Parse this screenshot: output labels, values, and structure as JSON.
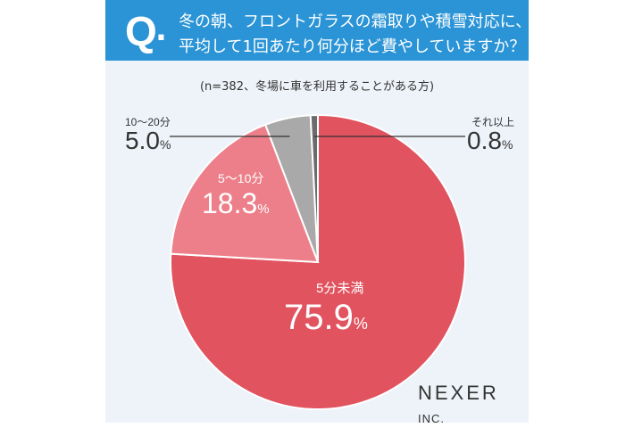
{
  "header": {
    "q": "Q",
    "dot": ".",
    "line1": "冬の朝、フロントガラスの霜取りや積雪対応に、",
    "line2": "平均して1回あたり何分ほど費やしていますか？"
  },
  "sample_note": "(n=382、冬場に車を利用することがある方)",
  "chart_data": {
    "type": "pie",
    "title": "冬の朝、フロントガラスの霜取りや積雪対応に、平均して1回あたり何分ほど費やしていますか？",
    "categories": [
      "5分未満",
      "5〜10分",
      "10〜20分",
      "それ以上"
    ],
    "values": [
      75.9,
      18.3,
      5.0,
      0.8
    ],
    "display": [
      "75.9",
      "18.3",
      "5.0",
      "0.8"
    ],
    "unit": "%",
    "colors": [
      "#e0535f",
      "#ec7f89",
      "#a9a9a9",
      "#6b6b6b"
    ],
    "start": "12 o'clock, clockwise"
  },
  "brand": {
    "name": "NEXER",
    "suffix": "INC."
  }
}
